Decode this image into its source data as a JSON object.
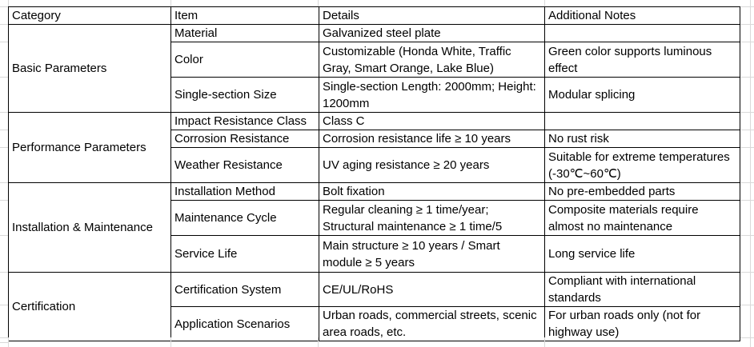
{
  "table": {
    "headers": [
      "Category",
      "Item",
      "Details",
      "Additional Notes"
    ],
    "sections": [
      {
        "category": "Basic Parameters",
        "rows": [
          {
            "item": "Material",
            "details": "Galvanized steel plate",
            "notes": ""
          },
          {
            "item": "Color",
            "details": "Customizable (Honda White, Traffic Gray, Smart Orange, Lake Blue)",
            "notes": "Green color supports luminous effect"
          },
          {
            "item": "Single-section Size",
            "details": "Single-section Length: 2000mm; Height: 1200mm",
            "notes": "Modular splicing"
          }
        ]
      },
      {
        "category": "Performance Parameters",
        "rows": [
          {
            "item": "Impact Resistance Class",
            "details": "Class C",
            "notes": ""
          },
          {
            "item": "Corrosion Resistance",
            "details": "Corrosion resistance life ≥ 10 years",
            "notes": "No rust risk"
          },
          {
            "item": "Weather Resistance",
            "details": "UV aging resistance ≥ 20 years",
            "notes": "Suitable for extreme temperatures (-30℃~60℃)"
          }
        ]
      },
      {
        "category": "Installation & Maintenance",
        "rows": [
          {
            "item": "Installation Method",
            "details": "Bolt fixation",
            "notes": "No pre-embedded parts"
          },
          {
            "item": "Maintenance Cycle",
            "details": "Regular cleaning ≥ 1 time/year; Structural maintenance ≥ 1 time/5",
            "notes": "Composite materials require almost no maintenance"
          },
          {
            "item": "Service Life",
            "details": "Main structure ≥ 10 years / Smart module ≥ 5 years",
            "notes": "Long service life"
          }
        ]
      },
      {
        "category": "Certification",
        "rows": [
          {
            "item": "Certification System",
            "details": "CE/UL/RoHS",
            "notes": "Compliant with international standards"
          },
          {
            "item": "Application Scenarios",
            "details": "Urban roads, commercial streets, scenic area roads, etc.",
            "notes": "For urban roads only (not for highway use)"
          }
        ]
      }
    ]
  },
  "colors": {
    "cell_border": "#000000",
    "sheet_gridline": "#d9d9d9",
    "text": "#000000",
    "background": "#ffffff"
  }
}
